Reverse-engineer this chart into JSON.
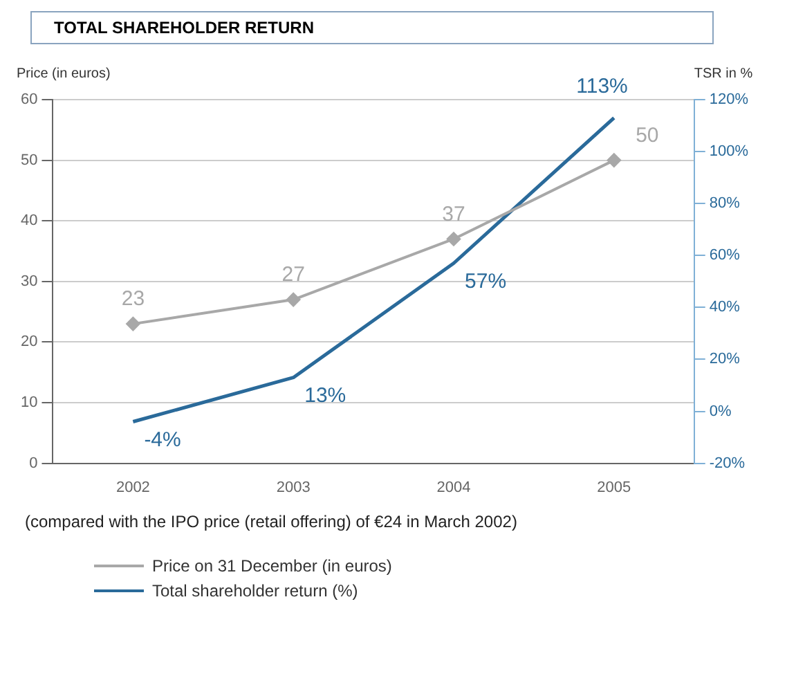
{
  "chart_data": {
    "type": "line",
    "title": "TOTAL SHAREHOLDER RETURN",
    "ylabel": "Price (in euros)",
    "y2label": "TSR in %",
    "categories": [
      "2002",
      "2003",
      "2004",
      "2005"
    ],
    "series": [
      {
        "name": "Price on 31 December (in euros)",
        "color": "#a8a8a8",
        "values": [
          23,
          27,
          37,
          50
        ],
        "value_labels": [
          "23",
          "27",
          "37",
          "50"
        ],
        "marker": "diamond"
      },
      {
        "name": "Total shareholder return (%)",
        "color": "#2a6a9a",
        "values": [
          -4,
          13,
          57,
          113
        ],
        "value_labels": [
          "-4%",
          "13%",
          "57%",
          "113%"
        ],
        "axis": "y2",
        "marker": "none"
      }
    ],
    "ylim": [
      0,
      60
    ],
    "yticks": [
      0,
      10,
      20,
      30,
      40,
      50,
      60
    ],
    "y2lim": [
      -20,
      120
    ],
    "y2ticks": [
      {
        "value": -20,
        "label": "-20%"
      },
      {
        "value": 0,
        "label": "0%"
      },
      {
        "value": 20,
        "label": "20%"
      },
      {
        "value": 40,
        "label": "40%"
      },
      {
        "value": 60,
        "label": "60%"
      },
      {
        "value": 80,
        "label": "80%"
      },
      {
        "value": 100,
        "label": "100%"
      },
      {
        "value": 120,
        "label": "120%"
      }
    ],
    "grid": "y",
    "legend": "bottom",
    "line_style": "solid",
    "annotations": [
      "(compared with the IPO price (retail offering) of €24 in March 2002)"
    ]
  }
}
